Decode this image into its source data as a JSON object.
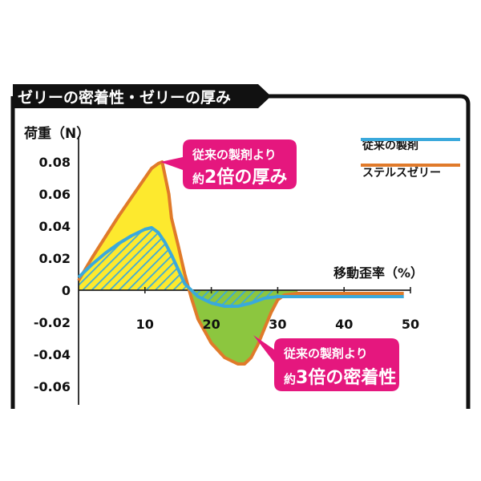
{
  "title": "ゼリーの密着性・ゼリーの厚み",
  "chart_data": {
    "type": "line",
    "ylabel": "荷重（N）",
    "xlabel": "移動歪率（%）",
    "xlim": [
      0,
      50
    ],
    "ylim": [
      -0.07,
      0.085
    ],
    "x_ticks": [
      10,
      20,
      30,
      40,
      50
    ],
    "y_ticks": [
      0.08,
      0.06,
      0.04,
      0.02,
      0,
      -0.02,
      -0.04,
      -0.06
    ],
    "grid": false,
    "legend_position": "top-right",
    "series": [
      {
        "name": "従来の製剤",
        "color": "#3aa9dc",
        "x": [
          0,
          2,
          4,
          6,
          8,
          10,
          11,
          12,
          13,
          14,
          15,
          16,
          18,
          20,
          22,
          24,
          26,
          28,
          30,
          35,
          40,
          45,
          49
        ],
        "y": [
          0.008,
          0.016,
          0.023,
          0.029,
          0.034,
          0.038,
          0.039,
          0.036,
          0.03,
          0.022,
          0.013,
          0.004,
          -0.004,
          -0.008,
          -0.01,
          -0.01,
          -0.008,
          -0.005,
          -0.004,
          -0.004,
          -0.004,
          -0.004,
          -0.004
        ]
      },
      {
        "name": "ステルスゼリー",
        "color": "#e07a2a",
        "x": [
          0,
          2,
          4,
          6,
          8,
          10,
          11,
          12,
          12.6,
          13.6,
          14,
          15,
          16,
          17,
          18,
          20,
          22,
          24,
          25,
          26,
          27,
          28,
          29,
          30,
          31,
          33,
          35,
          40,
          45,
          49
        ],
        "y": [
          0.006,
          0.02,
          0.033,
          0.046,
          0.058,
          0.07,
          0.076,
          0.079,
          0.08,
          0.06,
          0.045,
          0.028,
          0.01,
          -0.005,
          -0.018,
          -0.033,
          -0.042,
          -0.046,
          -0.046,
          -0.042,
          -0.034,
          -0.024,
          -0.014,
          -0.006,
          -0.003,
          -0.002,
          -0.002,
          -0.002,
          -0.002,
          -0.002
        ]
      }
    ],
    "legend": [
      {
        "label": "従来の製剤",
        "color": "#3aa9dc"
      },
      {
        "label": "ステルスゼリー",
        "color": "#e07a2a"
      }
    ],
    "annotations": [
      {
        "line1": "従来の製剤より",
        "line2a": "約",
        "line2b": "2倍の厚み",
        "color": "#e5177e"
      },
      {
        "line1": "従来の製剤より",
        "line2a": "約",
        "line2b": "3倍の密着性",
        "color": "#e5177e"
      }
    ],
    "fill_colors": {
      "stealth_positive": "#fde92e",
      "stealth_negative": "#8cc63f",
      "hatch": "#3aa9dc"
    }
  }
}
